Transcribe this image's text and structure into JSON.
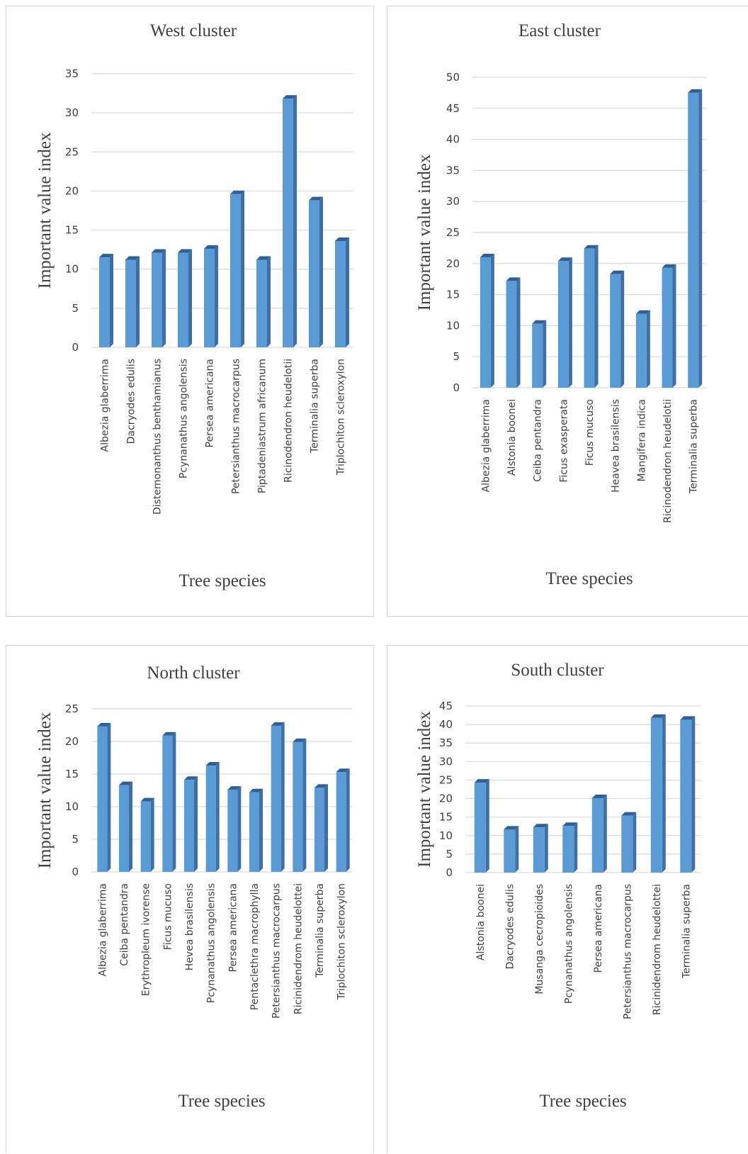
{
  "chart_data": [
    {
      "type": "bar",
      "title": "West cluster",
      "xlabel": "Tree species",
      "ylabel": "Important value index",
      "ylim": [
        0,
        35
      ],
      "yticks": [
        0,
        5,
        10,
        15,
        20,
        25,
        30,
        35
      ],
      "grid": true,
      "bar_color": "#5B9BD5",
      "categories": [
        "Albezia glaberrima",
        "Dacryodes edulis",
        "Distemonanthus benthamianus",
        "Pcynanathus angolensis",
        "Persea americana",
        "Petersianthus macrocarpus",
        "Piptadeniastrum africanum",
        "Ricinodendron heudelotii",
        "Terminalia superba",
        "Triplochiton scleroxylon"
      ],
      "values": [
        11.5,
        11.2,
        12.1,
        12.1,
        12.6,
        19.6,
        11.2,
        31.8,
        18.8,
        13.6
      ]
    },
    {
      "type": "bar",
      "title": "East cluster",
      "xlabel": "Tree species",
      "ylabel": "Important value index",
      "ylim": [
        0,
        50
      ],
      "yticks": [
        0,
        5,
        10,
        15,
        20,
        25,
        30,
        35,
        40,
        45,
        50
      ],
      "grid": true,
      "bar_color": "#5B9BD5",
      "categories": [
        "Albezia glaberrima",
        "Alstonia boonei",
        "Ceiba pentandra",
        "Ficus exasperata",
        "Ficus mucuso",
        "Heavea brasilensis",
        "Mangifera indica",
        "Ricinodendron heudelotii",
        "Terminalia superba"
      ],
      "values": [
        21.0,
        17.2,
        10.3,
        20.4,
        22.4,
        18.3,
        11.9,
        19.3,
        47.5
      ]
    },
    {
      "type": "bar",
      "title": "North cluster",
      "xlabel": "Tree species",
      "ylabel": "Important value index",
      "ylim": [
        0,
        25
      ],
      "yticks": [
        0,
        5,
        10,
        15,
        20,
        25
      ],
      "grid": true,
      "bar_color": "#5B9BD5",
      "categories": [
        "Albezia glaberrima",
        "Ceiba pentandra",
        "Erythropleum ivorense",
        "Ficus mucuso",
        "Hevea brasilensis",
        "Pcynanathus angolensis",
        "Persea americana",
        "Pentaclethra macrophylla",
        "Petersianthus macrocarpus",
        "Ricinidendrom heudelottei",
        "Terminalia superba",
        "Triplochiton scleroxylon"
      ],
      "values": [
        22.3,
        13.3,
        10.8,
        20.9,
        14.1,
        16.3,
        12.6,
        12.2,
        22.4,
        19.9,
        12.9,
        15.3
      ]
    },
    {
      "type": "bar",
      "title": "South cluster",
      "xlabel": "Tree species",
      "ylabel": "Important value index",
      "ylim": [
        0,
        45
      ],
      "yticks": [
        0,
        5,
        10,
        15,
        20,
        25,
        30,
        35,
        40,
        45
      ],
      "grid": true,
      "bar_color": "#5B9BD5",
      "categories": [
        "Alstonia boonei",
        "Dacryodes edulis",
        "Musanga cecropioides",
        "Pcynanathus angolensis",
        "Persea americana",
        "Petersianthus macrocarpus",
        "Ricinidendrom heudelottei",
        "Terminalia superba"
      ],
      "values": [
        24.3,
        11.6,
        12.2,
        12.6,
        20.1,
        15.4,
        41.8,
        41.3
      ]
    }
  ]
}
